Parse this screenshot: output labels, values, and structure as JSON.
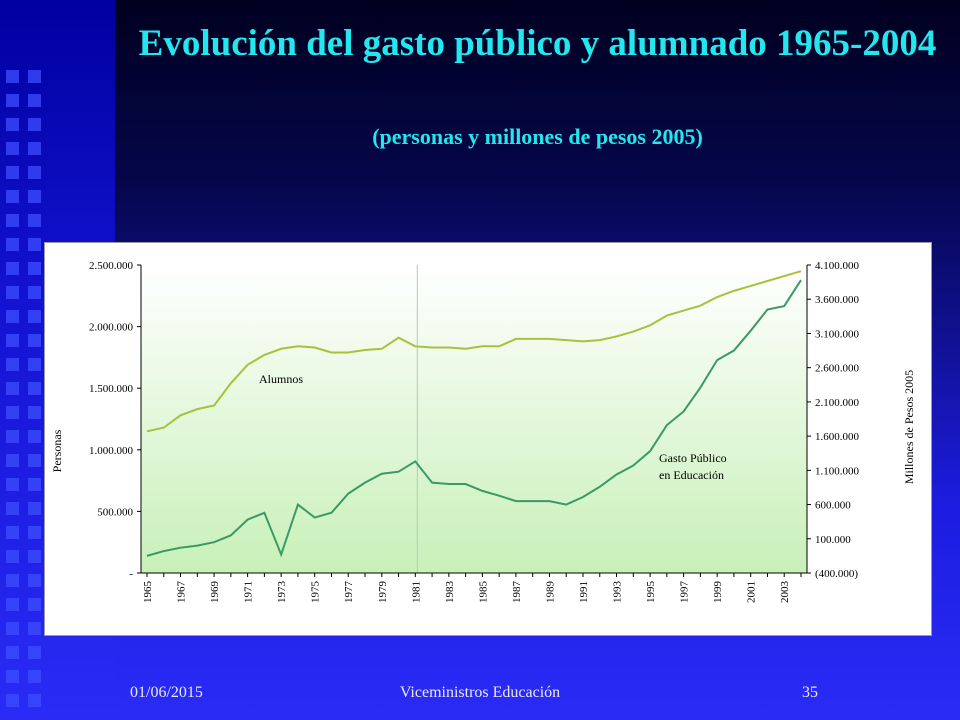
{
  "slide": {
    "title": "Evolución del gasto público y alumnado 1965-2004",
    "subtitle": "(personas y millones de pesos 2005)",
    "footer_date": "01/06/2015",
    "footer_center": "Viceministros Educación",
    "footer_page": "35"
  },
  "colors": {
    "title": "#22e8ee",
    "alumnos_line": "#a6c23a",
    "gasto_line": "#3a9a66",
    "plot_gradient_top": "#ffffff",
    "plot_gradient_bottom": "#c8f0b8"
  },
  "chart_data": {
    "type": "line",
    "xlabel": "",
    "x": [
      1965,
      1966,
      1967,
      1968,
      1969,
      1970,
      1971,
      1972,
      1973,
      1974,
      1975,
      1976,
      1977,
      1978,
      1979,
      1980,
      1981,
      1982,
      1983,
      1984,
      1985,
      1986,
      1987,
      1988,
      1989,
      1990,
      1991,
      1992,
      1993,
      1994,
      1995,
      1996,
      1997,
      1998,
      1999,
      2000,
      2001,
      2002,
      2003,
      2004
    ],
    "x_tick_labels": [
      "1965",
      "1967",
      "1969",
      "1971",
      "1973",
      "1975",
      "1977",
      "1979",
      "1981",
      "1983",
      "1985",
      "1987",
      "1989",
      "1991",
      "1993",
      "1995",
      "1997",
      "1999",
      "2001",
      "2003"
    ],
    "ylabel_left": "Personas",
    "ylabel_right": "Millones de Pesos 2005",
    "ylim_left": [
      0,
      2500000
    ],
    "ylim_right": [
      -400000,
      4100000
    ],
    "y_ticks_left": [
      "-",
      "500.000",
      "1.000.000",
      "1.500.000",
      "2.000.000",
      "2.500.000"
    ],
    "y_ticks_right": [
      "(400.000)",
      "100.000",
      "600.000",
      "1.100.000",
      "1.600.000",
      "2.100.000",
      "2.600.000",
      "3.100.000",
      "3.600.000",
      "4.100.000"
    ],
    "vertical_marker_x": 1981,
    "series": [
      {
        "name": "Alumnos",
        "axis": "left",
        "values": [
          1150000,
          1180000,
          1280000,
          1330000,
          1360000,
          1540000,
          1690000,
          1770000,
          1820000,
          1840000,
          1830000,
          1790000,
          1790000,
          1810000,
          1820000,
          1910000,
          1840000,
          1830000,
          1830000,
          1820000,
          1840000,
          1840000,
          1900000,
          1900000,
          1900000,
          1890000,
          1880000,
          1890000,
          1920000,
          1960000,
          2010000,
          2090000,
          2130000,
          2170000,
          2240000,
          2290000,
          2330000,
          2370000,
          2410000,
          2450000
        ]
      },
      {
        "name": "Gasto Público en Educación",
        "label_lines": [
          "Gasto Público",
          "en Educación"
        ],
        "axis": "right",
        "values": [
          -150000,
          -80000,
          -30000,
          0,
          50000,
          150000,
          380000,
          480000,
          -130000,
          600000,
          410000,
          480000,
          760000,
          920000,
          1050000,
          1080000,
          1230000,
          920000,
          900000,
          900000,
          800000,
          730000,
          650000,
          650000,
          650000,
          600000,
          710000,
          860000,
          1040000,
          1170000,
          1380000,
          1760000,
          1960000,
          2310000,
          2710000,
          2850000,
          3140000,
          3450000,
          3500000,
          3880000
        ]
      }
    ]
  }
}
